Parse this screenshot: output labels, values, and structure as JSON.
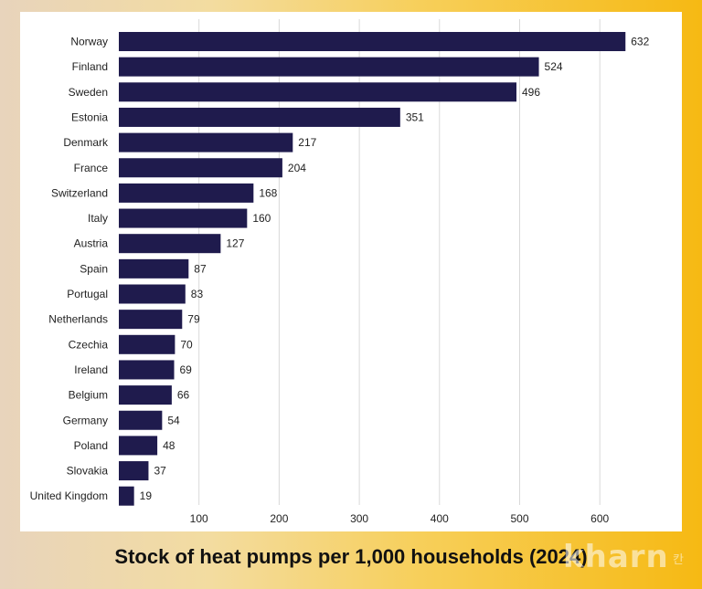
{
  "title": "Stock of heat pumps per 1,000 households (2024)",
  "watermark": {
    "text": "kharn",
    "suffix": "칸"
  },
  "colors": {
    "bar": "#1f1b4d",
    "grid": "#d9d9d9",
    "text": "#222222"
  },
  "chart_data": {
    "type": "bar",
    "orientation": "horizontal",
    "title": "Stock of heat pumps per 1,000 households (2024)",
    "xlabel": "",
    "ylabel": "",
    "categories": [
      "Norway",
      "Finland",
      "Sweden",
      "Estonia",
      "Denmark",
      "France",
      "Switzerland",
      "Italy",
      "Austria",
      "Spain",
      "Portugal",
      "Netherlands",
      "Czechia",
      "Ireland",
      "Belgium",
      "Germany",
      "Poland",
      "Slovakia",
      "United Kingdom"
    ],
    "values": [
      632,
      524,
      496,
      351,
      217,
      204,
      168,
      160,
      127,
      87,
      83,
      79,
      70,
      69,
      66,
      54,
      48,
      37,
      19
    ],
    "xticks": [
      100,
      200,
      300,
      400,
      500,
      600
    ],
    "xlim": [
      0,
      700
    ],
    "grid": true
  }
}
